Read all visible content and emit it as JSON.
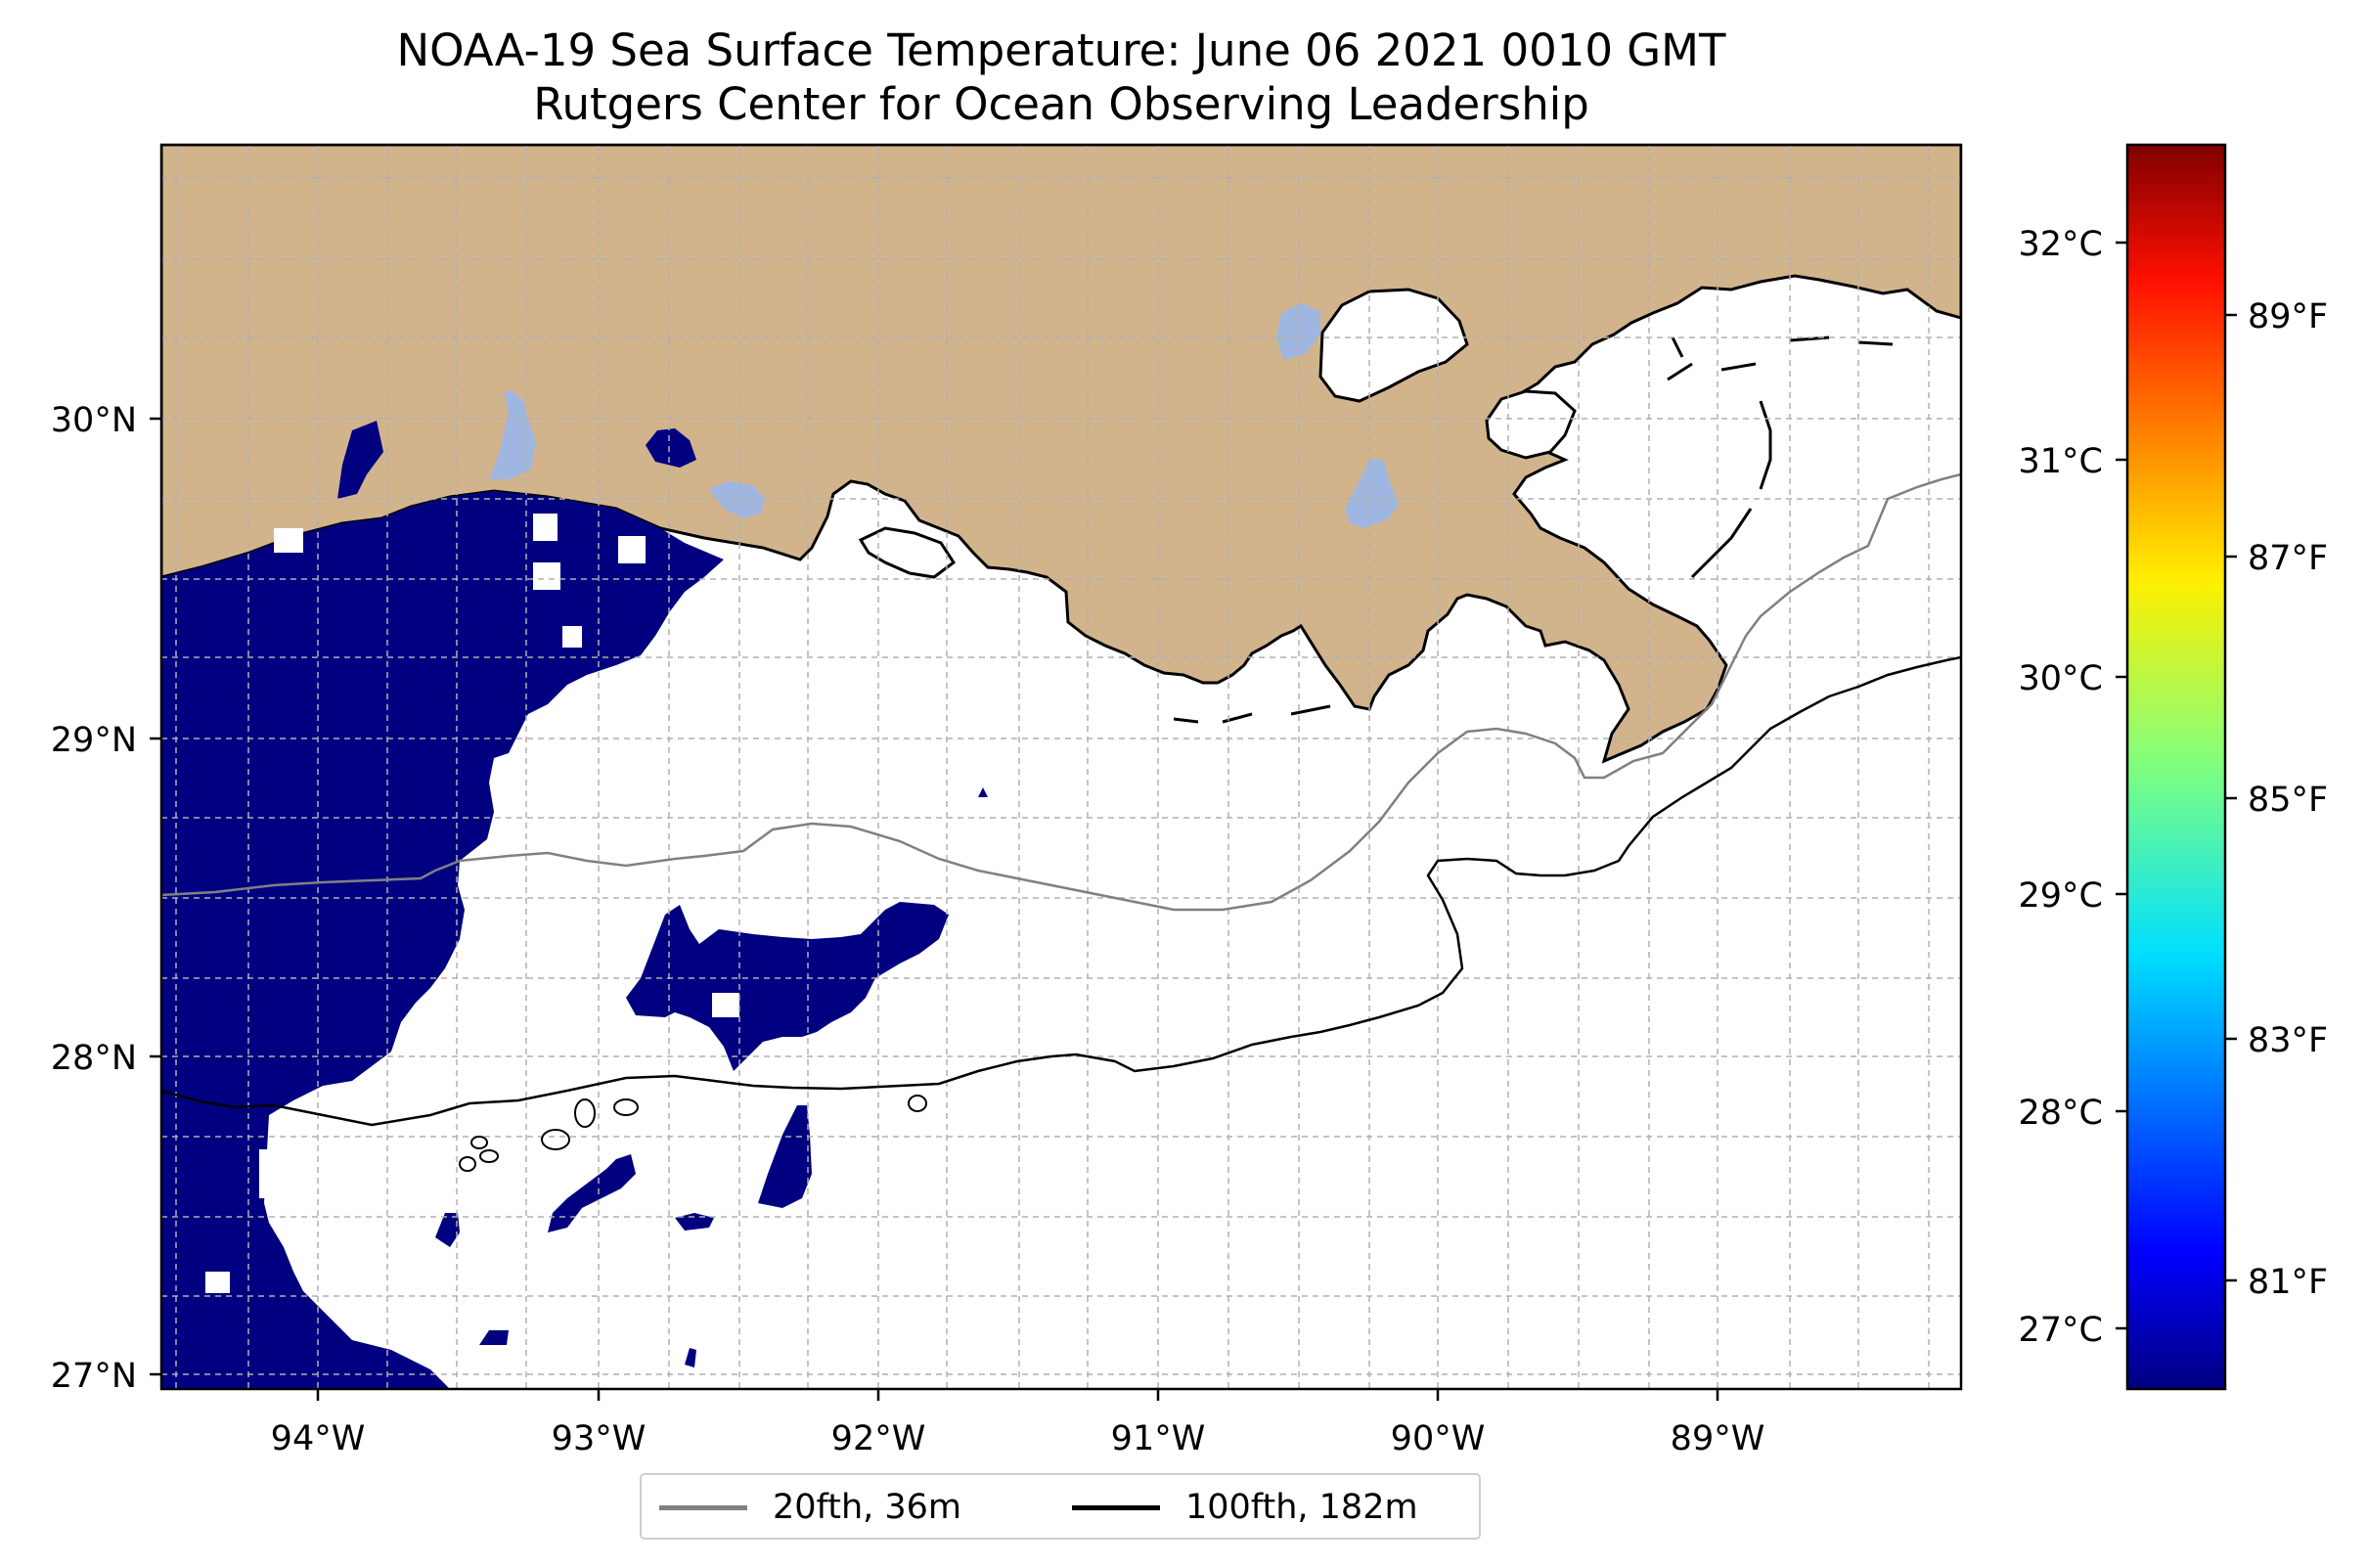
{
  "title": {
    "line1": "NOAA-19 Sea Surface Temperature: June 06 2021 0010 GMT",
    "line2": "Rutgers Center for Ocean Observing Leadership"
  },
  "map": {
    "lon_range": [
      -94.55,
      -88.2
    ],
    "lat_range": [
      26.95,
      30.85
    ],
    "lon_ticks": [
      {
        "value": -94,
        "label": "94°W"
      },
      {
        "value": -93,
        "label": "93°W"
      },
      {
        "value": -92,
        "label": "92°W"
      },
      {
        "value": -91,
        "label": "91°W"
      },
      {
        "value": -90,
        "label": "90°W"
      },
      {
        "value": -89,
        "label": "89°W"
      }
    ],
    "lat_ticks": [
      {
        "value": 30,
        "label": "30°N"
      },
      {
        "value": 29,
        "label": "29°N"
      },
      {
        "value": 28,
        "label": "28°N"
      },
      {
        "value": 27,
        "label": "27°N"
      }
    ],
    "gridlines": "dashed",
    "colors": {
      "land": "#d2b48c",
      "inland_water": "#9fb6e0",
      "cold_sst": "#000080",
      "ocean_no_data": "#ffffff",
      "isobath_20fth": "#808080",
      "isobath_100fth": "#000000"
    }
  },
  "colorbar": {
    "colormap": "jet",
    "celsius_ticks": [
      "32°C",
      "31°C",
      "30°C",
      "29°C",
      "28°C",
      "27°C"
    ],
    "fahrenheit_ticks": [
      "89°F",
      "87°F",
      "85°F",
      "83°F",
      "81°F"
    ]
  },
  "legend": {
    "entries": [
      {
        "label": "20fth, 36m",
        "color": "#808080"
      },
      {
        "label": "100fth, 182m",
        "color": "#000000"
      }
    ]
  }
}
